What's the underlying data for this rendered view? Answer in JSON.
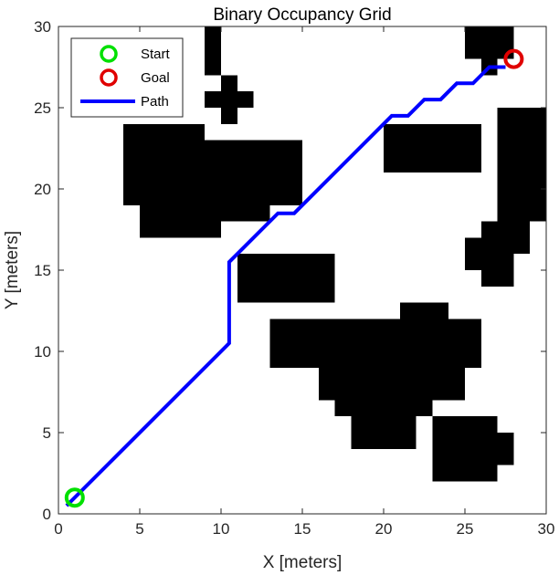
{
  "chart_data": {
    "type": "heatmap",
    "title": "Binary Occupancy Grid",
    "xlabel": "X [meters]",
    "ylabel": "Y [meters]",
    "xlim": [
      0,
      30
    ],
    "ylim": [
      0,
      30
    ],
    "xticks": [
      0,
      5,
      10,
      15,
      20,
      25,
      30
    ],
    "yticks": [
      0,
      5,
      10,
      15,
      20,
      25,
      30
    ],
    "grid": false,
    "legend_position": "top-left",
    "obstacle_color": "#000000",
    "free_color": "#ffffff",
    "occupied_cells": [
      [
        4,
        23,
        9,
        24
      ],
      [
        4,
        19,
        15,
        23
      ],
      [
        5,
        17,
        10,
        19
      ],
      [
        10,
        18,
        13,
        19
      ],
      [
        9,
        27,
        10,
        30
      ],
      [
        9,
        25,
        12,
        26
      ],
      [
        10,
        24,
        11,
        27
      ],
      [
        25,
        28,
        28,
        30
      ],
      [
        26,
        27,
        27,
        28
      ],
      [
        20,
        21,
        26,
        24
      ],
      [
        27,
        18,
        30,
        25
      ],
      [
        26,
        16,
        29,
        18
      ],
      [
        25,
        15,
        28,
        17
      ],
      [
        26,
        14,
        28,
        15
      ],
      [
        11,
        13,
        17,
        16
      ],
      [
        13,
        9,
        26,
        12
      ],
      [
        21,
        12,
        24,
        13
      ],
      [
        16,
        7,
        25,
        9
      ],
      [
        17,
        6,
        23,
        7
      ],
      [
        18,
        4,
        22,
        6
      ],
      [
        23,
        2,
        27,
        6
      ],
      [
        23,
        3,
        28,
        5
      ]
    ],
    "series": [
      {
        "name": "Path",
        "color": "#0000ff",
        "x": [
          0.5,
          10.5,
          10.5,
          11.5,
          13.5,
          14.5,
          20.5,
          21.5,
          22.5,
          23.5,
          24.5,
          25.5,
          26.5,
          27.5
        ],
        "y": [
          0.5,
          10.5,
          15.5,
          16.5,
          18.5,
          18.5,
          24.5,
          24.5,
          25.5,
          25.5,
          26.5,
          26.5,
          27.5,
          27.5
        ]
      }
    ],
    "markers": [
      {
        "name": "Start",
        "x": 1,
        "y": 1,
        "color": "#00e000"
      },
      {
        "name": "Goal",
        "x": 28,
        "y": 28,
        "color": "#e00000"
      }
    ],
    "legend": [
      "Start",
      "Goal",
      "Path"
    ]
  }
}
